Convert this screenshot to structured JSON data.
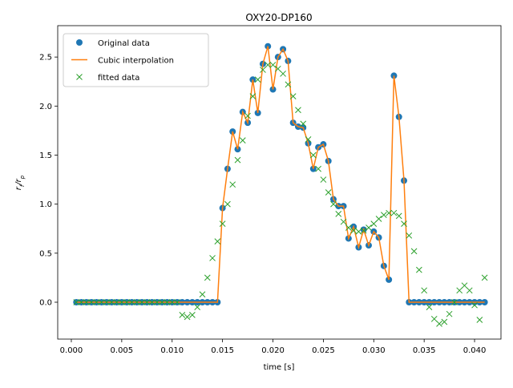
{
  "chart_data": {
    "type": "line",
    "title": "OXY20-DP160",
    "xlabel": "time [s]",
    "ylabel_parts": [
      "r",
      "f",
      "/",
      "r",
      "p"
    ],
    "xlim": [
      -0.00135,
      0.04262
    ],
    "ylim": [
      -0.376,
      2.82
    ],
    "xticks": [
      {
        "value": 0,
        "label": "0.000"
      },
      {
        "value": 0.005,
        "label": "0.005"
      },
      {
        "value": 0.01,
        "label": "0.010"
      },
      {
        "value": 0.015,
        "label": "0.015"
      },
      {
        "value": 0.02,
        "label": "0.020"
      },
      {
        "value": 0.025,
        "label": "0.025"
      },
      {
        "value": 0.03,
        "label": "0.030"
      },
      {
        "value": 0.035,
        "label": "0.035"
      },
      {
        "value": 0.04,
        "label": "0.040"
      }
    ],
    "yticks": [
      {
        "value": 0,
        "label": "0.0"
      },
      {
        "value": 0.5,
        "label": "0.5"
      },
      {
        "value": 1,
        "label": "1.0"
      },
      {
        "value": 1.5,
        "label": "1.5"
      },
      {
        "value": 2,
        "label": "2.0"
      },
      {
        "value": 2.5,
        "label": "2.5"
      }
    ],
    "legend": "upper left",
    "x": [
      0.0005,
      0.001,
      0.0015,
      0.002,
      0.0025,
      0.003,
      0.0035,
      0.004,
      0.0045,
      0.005,
      0.0055,
      0.006,
      0.0065,
      0.007,
      0.0075,
      0.008,
      0.0085,
      0.009,
      0.0095,
      0.01,
      0.0105,
      0.011,
      0.0115,
      0.012,
      0.0125,
      0.013,
      0.0135,
      0.014,
      0.0145,
      0.015,
      0.0155,
      0.016,
      0.0165,
      0.017,
      0.0175,
      0.018,
      0.0185,
      0.019,
      0.0195,
      0.02,
      0.0205,
      0.021,
      0.0215,
      0.022,
      0.0225,
      0.023,
      0.0235,
      0.024,
      0.0245,
      0.025,
      0.0255,
      0.026,
      0.0265,
      0.027,
      0.0275,
      0.028,
      0.0285,
      0.029,
      0.0295,
      0.03,
      0.0305,
      0.031,
      0.0315,
      0.032,
      0.0325,
      0.033,
      0.0335,
      0.034,
      0.0345,
      0.035,
      0.0355,
      0.036,
      0.0365,
      0.037,
      0.0375,
      0.038,
      0.0385,
      0.039,
      0.0395,
      0.04,
      0.0405,
      0.041
    ],
    "series": [
      {
        "name": "Original data",
        "color": "#1f77b4",
        "style": "o",
        "values": [
          0,
          0,
          0,
          0,
          0,
          0,
          0,
          0,
          0,
          0,
          0,
          0,
          0,
          0,
          0,
          0,
          0,
          0,
          0,
          0,
          0,
          0,
          0,
          0,
          0,
          0,
          0,
          0,
          0,
          0.96,
          1.36,
          1.74,
          1.56,
          1.94,
          1.83,
          2.27,
          1.93,
          2.43,
          2.61,
          2.17,
          2.5,
          2.58,
          2.46,
          1.83,
          1.79,
          1.78,
          1.62,
          1.36,
          1.58,
          1.61,
          1.44,
          1.05,
          0.98,
          0.98,
          0.65,
          0.77,
          0.56,
          0.74,
          0.58,
          0.72,
          0.66,
          0.37,
          0.23,
          2.31,
          1.89,
          1.24,
          0,
          0,
          0,
          0,
          0,
          0,
          0,
          0,
          0,
          0,
          0,
          0,
          0,
          0,
          0,
          0
        ]
      },
      {
        "name": "Cubic interpolation",
        "color": "#ff7f0e",
        "style": "-",
        "values": [
          0,
          0,
          0,
          0,
          0,
          0,
          0,
          0,
          0,
          0,
          0,
          0,
          0,
          0,
          0,
          0,
          0,
          0,
          0,
          0,
          0,
          0,
          0,
          0,
          0,
          0,
          0,
          0,
          0,
          0.96,
          1.36,
          1.74,
          1.56,
          1.94,
          1.83,
          2.27,
          1.93,
          2.43,
          2.61,
          2.17,
          2.5,
          2.58,
          2.46,
          1.83,
          1.79,
          1.78,
          1.62,
          1.36,
          1.58,
          1.61,
          1.44,
          1.05,
          0.98,
          0.98,
          0.65,
          0.77,
          0.56,
          0.74,
          0.58,
          0.72,
          0.66,
          0.37,
          0.23,
          2.31,
          1.89,
          1.24,
          0,
          0,
          0,
          0,
          0,
          0,
          0,
          0,
          0,
          0,
          0,
          0,
          0,
          0,
          0,
          0
        ]
      },
      {
        "name": "fitted data",
        "color": "#2ca02c",
        "style": "x",
        "values": [
          0,
          0,
          0,
          0,
          0,
          0,
          0,
          0,
          0,
          0,
          0,
          0,
          0,
          0,
          0,
          0,
          0,
          0,
          0,
          0,
          0,
          -0.13,
          -0.15,
          -0.13,
          -0.05,
          0.08,
          0.25,
          0.45,
          0.62,
          0.8,
          1.0,
          1.2,
          1.45,
          1.65,
          1.9,
          2.1,
          2.27,
          2.37,
          2.42,
          2.42,
          2.38,
          2.33,
          2.22,
          2.1,
          1.96,
          1.82,
          1.66,
          1.5,
          1.36,
          1.25,
          1.12,
          1.0,
          0.9,
          0.82,
          0.76,
          0.73,
          0.72,
          0.73,
          0.76,
          0.8,
          0.85,
          0.89,
          0.91,
          0.91,
          0.88,
          0.8,
          0.68,
          0.52,
          0.33,
          0.12,
          -0.05,
          -0.17,
          -0.22,
          -0.2,
          -0.12,
          0.0,
          0.12,
          0.17,
          0.12,
          -0.03,
          -0.18,
          0.25
        ]
      }
    ]
  }
}
